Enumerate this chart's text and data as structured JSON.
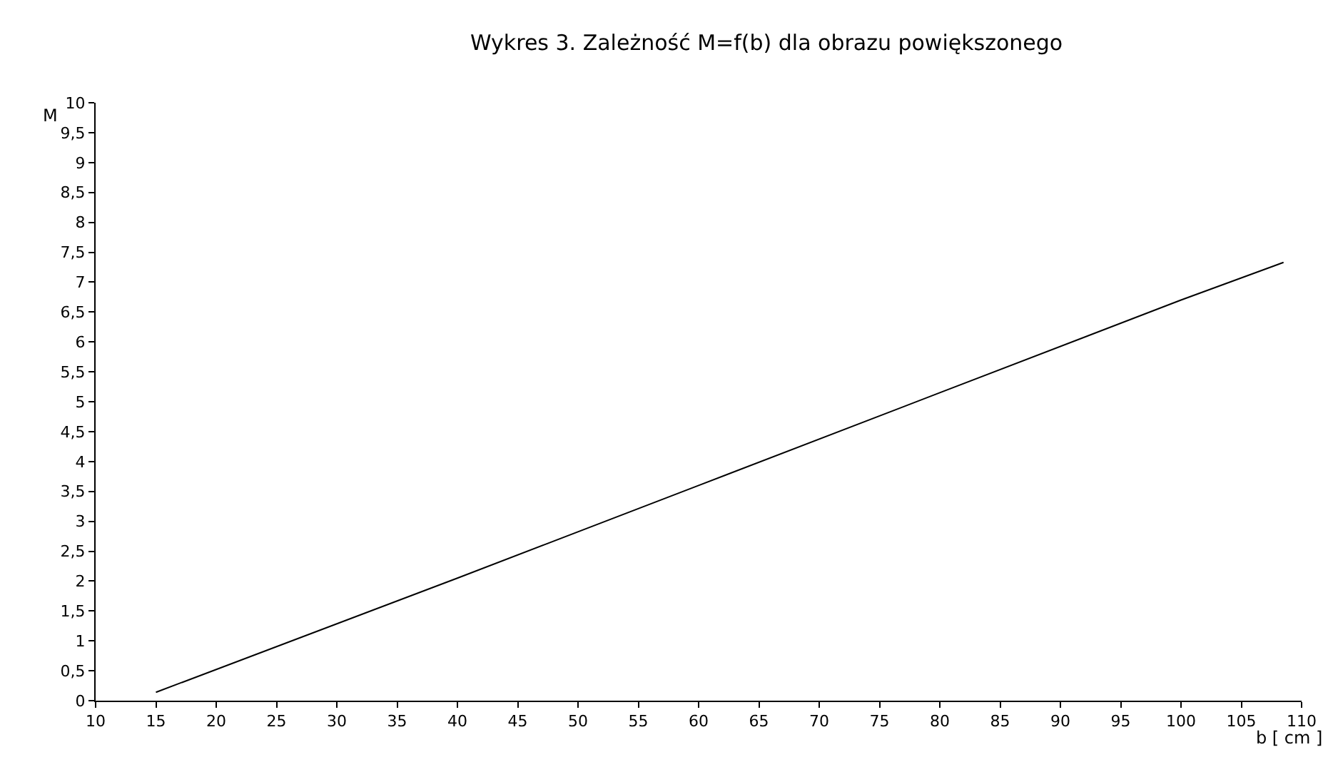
{
  "chart_data": {
    "type": "line",
    "title": "Wykres 3. Zależność M=f(b) dla obrazu powiększonego",
    "xlabel": "b [ cm ]",
    "ylabel": "M",
    "x": [
      15,
      40,
      60,
      80,
      100,
      108.5
    ],
    "series": [
      {
        "color": "#000000",
        "values": [
          0.14,
          2.05,
          3.6,
          5.15,
          6.7,
          7.33
        ]
      }
    ],
    "xlim": [
      10,
      110
    ],
    "xticks": [
      10,
      15,
      20,
      25,
      30,
      35,
      40,
      45,
      50,
      55,
      60,
      65,
      70,
      75,
      80,
      85,
      90,
      95,
      100,
      105,
      110
    ],
    "ylim": [
      0,
      10
    ],
    "yticks": [
      0,
      {
        "value": 0.5,
        "label": "0,5"
      },
      1,
      {
        "value": 1.5,
        "label": "1,5"
      },
      2,
      {
        "value": 2.5,
        "label": "2,5"
      },
      3,
      {
        "value": 3.5,
        "label": "3,5"
      },
      4,
      {
        "value": 4.5,
        "label": "4,5"
      },
      5,
      {
        "value": 5.5,
        "label": "5,5"
      },
      6,
      {
        "value": 6.5,
        "label": "6,5"
      },
      7,
      {
        "value": 7.5,
        "label": "7,5"
      },
      8,
      {
        "value": 8.5,
        "label": "8,5"
      },
      9,
      {
        "value": 9.5,
        "label": "9,5"
      },
      10
    ],
    "marker": "none",
    "line_style": "solid"
  }
}
